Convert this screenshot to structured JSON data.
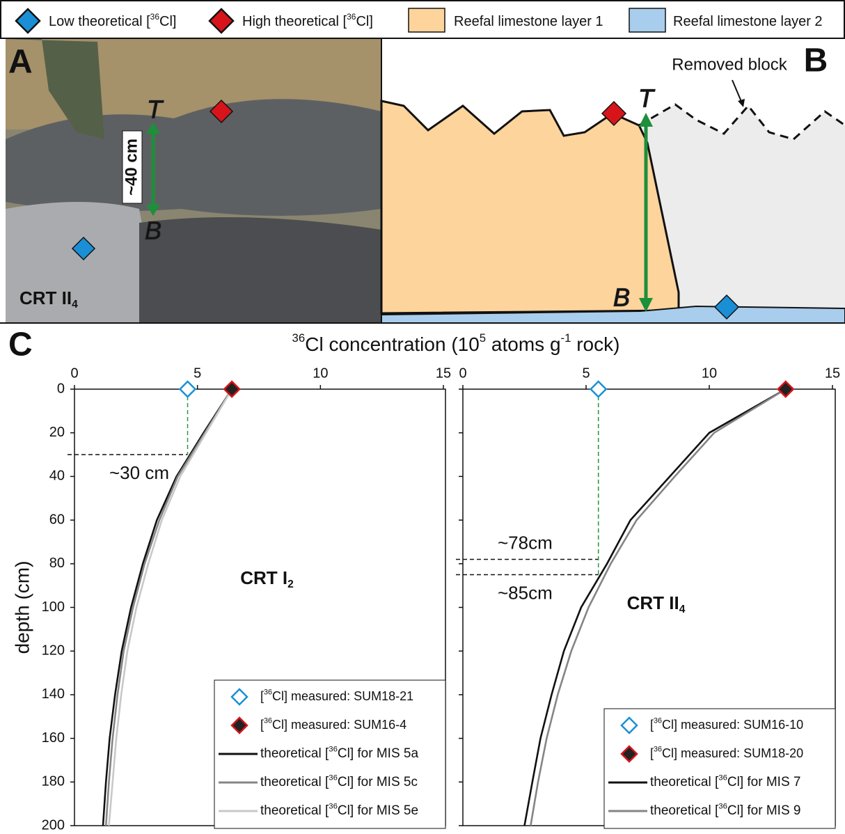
{
  "legend": {
    "items": [
      {
        "label": [
          {
            "text": "Low theoretical ["
          },
          {
            "text": "36",
            "shift": "sup"
          },
          {
            "text": "Cl]"
          }
        ],
        "symbol": "diamond",
        "color": "#1a8fd6"
      },
      {
        "label": [
          {
            "text": "High theoretical ["
          },
          {
            "text": "36",
            "shift": "sup"
          },
          {
            "text": "Cl]"
          }
        ],
        "symbol": "diamond",
        "color": "#d7141a"
      },
      {
        "label": [
          {
            "text": "Reefal limestone layer 1"
          }
        ],
        "symbol": "box",
        "color": "#fcd49c"
      },
      {
        "label": [
          {
            "text": "Reefal limestone layer 2"
          }
        ],
        "symbol": "box",
        "color": "#a9cdec"
      }
    ]
  },
  "panel_a": {
    "letter": "A",
    "site": [
      {
        "text": "CRT II"
      },
      {
        "text": "4",
        "shift": "sub"
      }
    ],
    "scale": "~40 cm",
    "top": "T",
    "bottom": "B"
  },
  "panel_b": {
    "letter": "B",
    "note": "Removed block",
    "top": "T",
    "bottom": "B"
  },
  "panel_c": {
    "letter": "C",
    "x_label": [
      {
        "text": "36",
        "shift": "sup"
      },
      {
        "text": "Cl concentration (10"
      },
      {
        "text": "5",
        "shift": "sup"
      },
      {
        "text": " atoms g"
      },
      {
        "text": "-1",
        "shift": "sup"
      },
      {
        "text": " rock)"
      }
    ]
  },
  "chart_data": [
    {
      "type": "line",
      "label": [
        {
          "text": "CRT I"
        },
        {
          "text": "2",
          "shift": "sub"
        }
      ],
      "y_label": "depth (cm)",
      "xlim": [
        0,
        15
      ],
      "xticks": [
        0,
        5,
        10,
        15
      ],
      "ylim": [
        0,
        200
      ],
      "yticks": [
        0,
        20,
        40,
        60,
        80,
        100,
        120,
        140,
        160,
        180,
        200
      ],
      "y_inverted": true,
      "legend": "lower right",
      "depths": [
        0,
        20,
        40,
        60,
        80,
        100,
        120,
        140,
        160,
        180,
        200
      ],
      "points": [
        {
          "name": [
            {
              "text": "["
            },
            {
              "text": "36",
              "shift": "sup"
            },
            {
              "text": "Cl] measured: SUM18-21"
            }
          ],
          "x": 4.6,
          "depth": 0,
          "marker": "hollow",
          "color": "#1a8fd6"
        },
        {
          "name": [
            {
              "text": "["
            },
            {
              "text": "36",
              "shift": "sup"
            },
            {
              "text": "Cl] measured: SUM16-4"
            }
          ],
          "x": 6.4,
          "depth": 0,
          "marker": "filled",
          "color": "#d7141a"
        }
      ],
      "series": [
        {
          "name": [
            {
              "text": "theoretical ["
            },
            {
              "text": "36",
              "shift": "sup"
            },
            {
              "text": "Cl] for MIS 5a"
            }
          ],
          "color": "#111111",
          "values": [
            6.4,
            5.25,
            4.15,
            3.35,
            2.78,
            2.3,
            1.92,
            1.65,
            1.43,
            1.28,
            1.16
          ]
        },
        {
          "name": [
            {
              "text": "theoretical ["
            },
            {
              "text": "36",
              "shift": "sup"
            },
            {
              "text": "Cl] for MIS 5c"
            }
          ],
          "color": "#858585",
          "values": [
            6.4,
            5.3,
            4.2,
            3.45,
            2.85,
            2.38,
            2.0,
            1.75,
            1.55,
            1.4,
            1.28
          ]
        },
        {
          "name": [
            {
              "text": "theoretical ["
            },
            {
              "text": "36",
              "shift": "sup"
            },
            {
              "text": "Cl] for MIS 5e"
            }
          ],
          "color": "#c8c8c8",
          "values": [
            6.4,
            5.35,
            4.3,
            3.55,
            3.0,
            2.52,
            2.15,
            1.9,
            1.7,
            1.55,
            1.4
          ]
        }
      ],
      "annotations": [
        {
          "label": "~30 cm",
          "depth": 30,
          "x": 4.6
        }
      ]
    },
    {
      "type": "line",
      "label": [
        {
          "text": "CRT II"
        },
        {
          "text": "4",
          "shift": "sub"
        }
      ],
      "xlim": [
        0,
        15
      ],
      "xticks": [
        0,
        5,
        10,
        15
      ],
      "ylim": [
        0,
        200
      ],
      "yticks": [
        0,
        20,
        40,
        60,
        80,
        100,
        120,
        140,
        160,
        180,
        200
      ],
      "y_inverted": true,
      "legend": "lower right",
      "depths": [
        0,
        20,
        40,
        60,
        80,
        100,
        120,
        140,
        160,
        180,
        200
      ],
      "points": [
        {
          "name": [
            {
              "text": "["
            },
            {
              "text": "36",
              "shift": "sup"
            },
            {
              "text": "Cl] measured: SUM16-10"
            }
          ],
          "x": 5.5,
          "depth": 0,
          "marker": "hollow",
          "color": "#1a8fd6"
        },
        {
          "name": [
            {
              "text": "["
            },
            {
              "text": "36",
              "shift": "sup"
            },
            {
              "text": "Cl] measured: SUM18-20"
            }
          ],
          "x": 13.1,
          "depth": 0,
          "marker": "filled",
          "color": "#d7141a"
        }
      ],
      "series": [
        {
          "name": [
            {
              "text": "theoretical ["
            },
            {
              "text": "36",
              "shift": "sup"
            },
            {
              "text": "Cl] for MIS 7"
            }
          ],
          "color": "#111111",
          "values": [
            13.1,
            10.0,
            8.4,
            6.8,
            5.85,
            4.8,
            4.1,
            3.6,
            3.15,
            2.82,
            2.5
          ]
        },
        {
          "name": [
            {
              "text": "theoretical ["
            },
            {
              "text": "36",
              "shift": "sup"
            },
            {
              "text": "Cl] for MIS 9"
            }
          ],
          "color": "#858585",
          "values": [
            13.1,
            10.2,
            8.6,
            7.05,
            6.0,
            5.1,
            4.4,
            3.85,
            3.4,
            3.05,
            2.75
          ]
        }
      ],
      "annotations": [
        {
          "label": "~78cm",
          "depth": 78,
          "x": 5.5
        },
        {
          "label": "~85cm",
          "depth": 85,
          "x": 5.5
        }
      ]
    }
  ]
}
